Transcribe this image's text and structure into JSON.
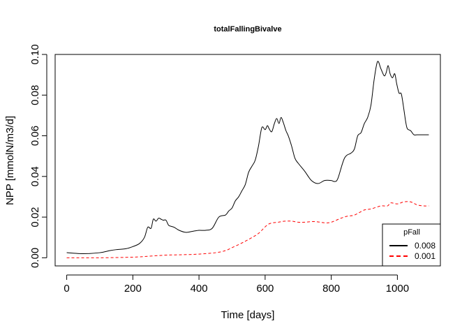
{
  "chart_data": {
    "type": "line",
    "title": "totalFallingBivalve",
    "xlabel": "Time [days]",
    "ylabel": "NPP [mmolN/m3/d]",
    "xlim": [
      -35,
      1130
    ],
    "ylim": [
      -0.004,
      0.1
    ],
    "x_ticks": [
      0,
      200,
      400,
      600,
      800,
      1000
    ],
    "y_ticks": [
      0.0,
      0.02,
      0.04,
      0.06,
      0.08,
      0.1
    ],
    "x_tick_labels": [
      "0",
      "200",
      "400",
      "600",
      "800",
      "1000"
    ],
    "y_tick_labels": [
      "0.00",
      "0.02",
      "0.04",
      "0.06",
      "0.08",
      "0.10"
    ],
    "grid": false,
    "legend": {
      "title": "pFall",
      "position": "bottom-right",
      "entries": [
        "0.008",
        "0.001"
      ]
    },
    "series": [
      {
        "name": "0.008",
        "color": "#000000",
        "dash": "solid",
        "x": [
          0,
          50,
          100,
          130,
          150,
          180,
          200,
          220,
          235,
          245,
          255,
          262,
          270,
          278,
          285,
          292,
          300,
          308,
          315,
          325,
          340,
          360,
          380,
          400,
          420,
          440,
          460,
          480,
          490,
          500,
          510,
          520,
          530,
          540,
          550,
          560,
          570,
          580,
          590,
          600,
          607,
          612,
          620,
          628,
          635,
          642,
          648,
          655,
          663,
          670,
          680,
          690,
          700,
          720,
          740,
          760,
          780,
          800,
          810,
          820,
          840,
          860,
          870,
          880,
          890,
          900,
          910,
          920,
          930,
          940,
          950,
          960,
          966,
          972,
          978,
          985,
          992,
          998,
          1005,
          1012,
          1020,
          1025,
          1030,
          1040,
          1050,
          1060,
          1070,
          1080,
          1095
        ],
        "values": [
          0.0025,
          0.002,
          0.0025,
          0.0035,
          0.004,
          0.0045,
          0.0055,
          0.007,
          0.01,
          0.015,
          0.0145,
          0.019,
          0.018,
          0.0195,
          0.019,
          0.0185,
          0.0185,
          0.016,
          0.0155,
          0.015,
          0.0135,
          0.0125,
          0.013,
          0.0135,
          0.0135,
          0.0145,
          0.02,
          0.021,
          0.023,
          0.0245,
          0.028,
          0.03,
          0.033,
          0.036,
          0.042,
          0.045,
          0.048,
          0.055,
          0.064,
          0.063,
          0.065,
          0.0635,
          0.062,
          0.066,
          0.0685,
          0.066,
          0.069,
          0.0665,
          0.0625,
          0.06,
          0.055,
          0.049,
          0.0465,
          0.0425,
          0.038,
          0.0365,
          0.038,
          0.038,
          0.0375,
          0.039,
          0.049,
          0.0515,
          0.0535,
          0.06,
          0.0615,
          0.066,
          0.069,
          0.075,
          0.088,
          0.0965,
          0.093,
          0.0895,
          0.091,
          0.0945,
          0.0905,
          0.0885,
          0.0905,
          0.0855,
          0.081,
          0.0805,
          0.0725,
          0.067,
          0.0635,
          0.0625,
          0.0605,
          0.0605,
          0.0605,
          0.0605,
          0.0605
        ]
      },
      {
        "name": "0.001",
        "color": "#ff0000",
        "dash": "dashed",
        "x": [
          0,
          100,
          200,
          250,
          300,
          350,
          400,
          450,
          480,
          500,
          520,
          550,
          580,
          610,
          640,
          660,
          680,
          700,
          720,
          750,
          780,
          800,
          830,
          850,
          870,
          900,
          920,
          950,
          970,
          980,
          1000,
          1020,
          1040,
          1060,
          1080,
          1095
        ],
        "values": [
          0.0,
          0.0,
          0.0003,
          0.0008,
          0.0013,
          0.0015,
          0.0018,
          0.0025,
          0.0035,
          0.005,
          0.0065,
          0.009,
          0.012,
          0.0165,
          0.0175,
          0.018,
          0.018,
          0.0175,
          0.0175,
          0.0178,
          0.0172,
          0.0175,
          0.0195,
          0.0205,
          0.021,
          0.0235,
          0.024,
          0.0255,
          0.0255,
          0.027,
          0.0265,
          0.0275,
          0.0275,
          0.026,
          0.0255,
          0.0255
        ]
      }
    ]
  }
}
